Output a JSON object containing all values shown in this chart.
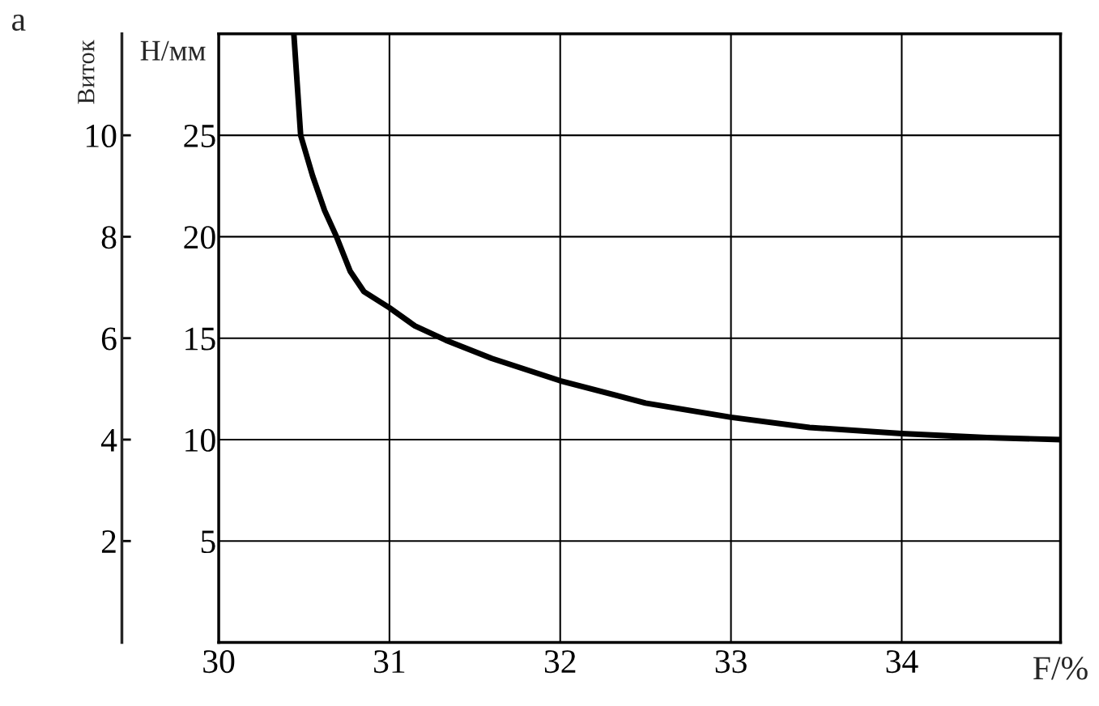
{
  "chart_data": {
    "type": "line",
    "xlabel": "F/%",
    "ylabel": "H/мм",
    "y2label": "Виток",
    "annotations": [
      "a"
    ],
    "series": [
      {
        "color": "#000000",
        "x": [
          30.44,
          30.48,
          30.55,
          30.62,
          30.69,
          30.77,
          30.85,
          31.0,
          31.15,
          31.33,
          31.6,
          32.0,
          32.5,
          33.0,
          33.46,
          34.0,
          34.5,
          34.93
        ],
        "values": [
          30,
          25,
          23,
          21.3,
          20,
          18.3,
          17.3,
          16.5,
          15.6,
          14.9,
          14.0,
          12.9,
          11.8,
          11.1,
          10.6,
          10.3,
          10.1,
          10.0
        ]
      }
    ],
    "xlim": [
      30,
      34.93
    ],
    "xticks": [
      30,
      31,
      32,
      33,
      34
    ],
    "ylim": [
      0,
      30
    ],
    "yticks": [
      5,
      10,
      15,
      20,
      25
    ],
    "y2lim": [
      0,
      12
    ],
    "y2ticks": [
      2,
      4,
      6,
      8,
      10
    ],
    "grid": true,
    "legend": false,
    "marker": "none",
    "line_style": "solid"
  }
}
